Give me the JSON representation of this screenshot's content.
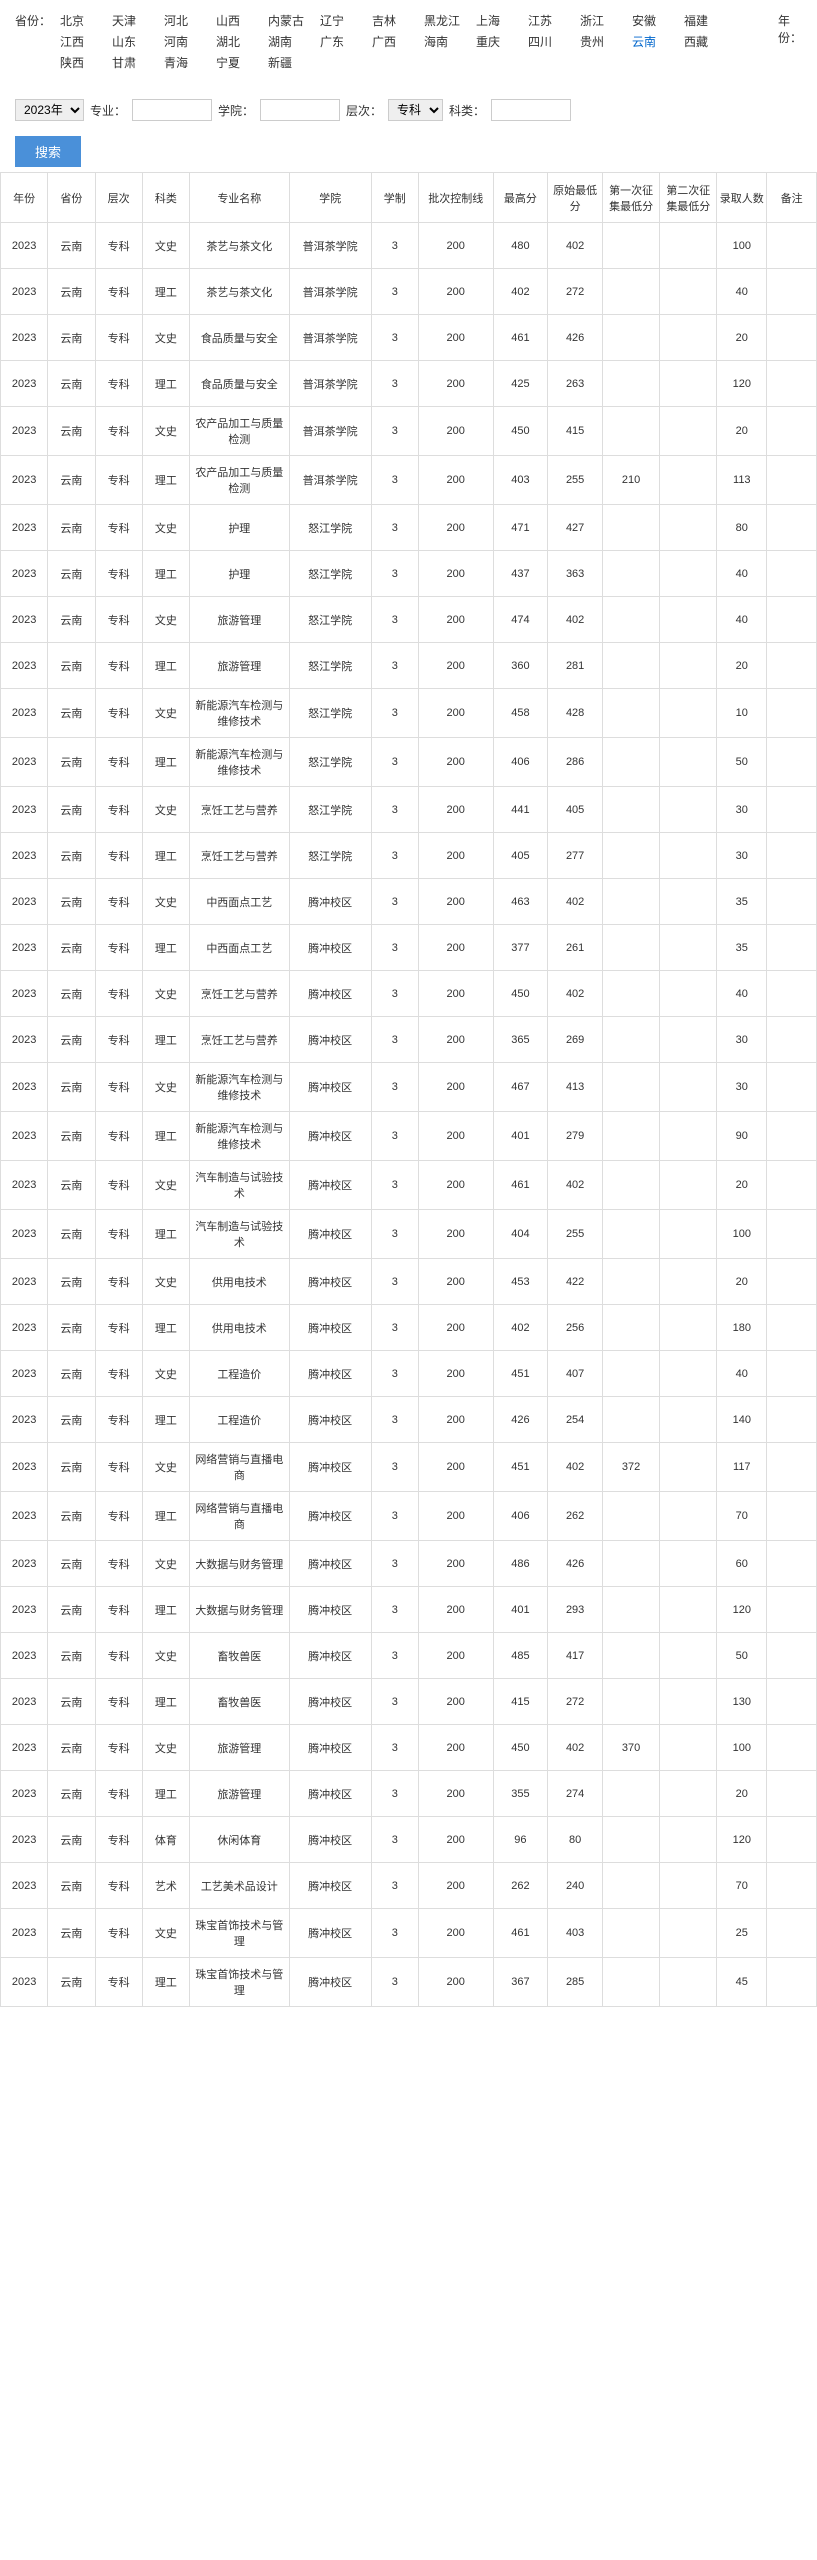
{
  "filter": {
    "province_label": "省份：",
    "year_label": "年份：",
    "provinces": [
      "北京",
      "天津",
      "河北",
      "山西",
      "内蒙古",
      "辽宁",
      "吉林",
      "黑龙江",
      "上海",
      "江苏",
      "浙江",
      "安徽",
      "福建",
      "江西",
      "山东",
      "河南",
      "湖北",
      "湖南",
      "广东",
      "广西",
      "海南",
      "重庆",
      "四川",
      "贵州",
      "云南",
      "西藏",
      "陕西",
      "甘肃",
      "青海",
      "宁夏",
      "新疆"
    ],
    "active_province": "云南"
  },
  "query": {
    "year_options": [
      "2023年"
    ],
    "year_selected": "2023年",
    "major_label": "专业：",
    "college_label": "学院：",
    "level_label": "层次：",
    "level_options": [
      "专科"
    ],
    "level_selected": "专科",
    "category_label": "科类：",
    "search_btn": "搜索"
  },
  "table": {
    "headers": [
      "年份",
      "省份",
      "层次",
      "科类",
      "专业名称",
      "学院",
      "学制",
      "批次控制线",
      "最高分",
      "原始最低分",
      "第一次征集最低分",
      "第二次征集最低分",
      "录取人数",
      "备注"
    ],
    "rows": [
      [
        "2023",
        "云南",
        "专科",
        "文史",
        "茶艺与茶文化",
        "普洱茶学院",
        "3",
        "200",
        "480",
        "402",
        "",
        "",
        "100",
        ""
      ],
      [
        "2023",
        "云南",
        "专科",
        "理工",
        "茶艺与茶文化",
        "普洱茶学院",
        "3",
        "200",
        "402",
        "272",
        "",
        "",
        "40",
        ""
      ],
      [
        "2023",
        "云南",
        "专科",
        "文史",
        "食品质量与安全",
        "普洱茶学院",
        "3",
        "200",
        "461",
        "426",
        "",
        "",
        "20",
        ""
      ],
      [
        "2023",
        "云南",
        "专科",
        "理工",
        "食品质量与安全",
        "普洱茶学院",
        "3",
        "200",
        "425",
        "263",
        "",
        "",
        "120",
        ""
      ],
      [
        "2023",
        "云南",
        "专科",
        "文史",
        "农产品加工与质量检测",
        "普洱茶学院",
        "3",
        "200",
        "450",
        "415",
        "",
        "",
        "20",
        ""
      ],
      [
        "2023",
        "云南",
        "专科",
        "理工",
        "农产品加工与质量检测",
        "普洱茶学院",
        "3",
        "200",
        "403",
        "255",
        "210",
        "",
        "113",
        ""
      ],
      [
        "2023",
        "云南",
        "专科",
        "文史",
        "护理",
        "怒江学院",
        "3",
        "200",
        "471",
        "427",
        "",
        "",
        "80",
        ""
      ],
      [
        "2023",
        "云南",
        "专科",
        "理工",
        "护理",
        "怒江学院",
        "3",
        "200",
        "437",
        "363",
        "",
        "",
        "40",
        ""
      ],
      [
        "2023",
        "云南",
        "专科",
        "文史",
        "旅游管理",
        "怒江学院",
        "3",
        "200",
        "474",
        "402",
        "",
        "",
        "40",
        ""
      ],
      [
        "2023",
        "云南",
        "专科",
        "理工",
        "旅游管理",
        "怒江学院",
        "3",
        "200",
        "360",
        "281",
        "",
        "",
        "20",
        ""
      ],
      [
        "2023",
        "云南",
        "专科",
        "文史",
        "新能源汽车检测与维修技术",
        "怒江学院",
        "3",
        "200",
        "458",
        "428",
        "",
        "",
        "10",
        ""
      ],
      [
        "2023",
        "云南",
        "专科",
        "理工",
        "新能源汽车检测与维修技术",
        "怒江学院",
        "3",
        "200",
        "406",
        "286",
        "",
        "",
        "50",
        ""
      ],
      [
        "2023",
        "云南",
        "专科",
        "文史",
        "烹饪工艺与营养",
        "怒江学院",
        "3",
        "200",
        "441",
        "405",
        "",
        "",
        "30",
        ""
      ],
      [
        "2023",
        "云南",
        "专科",
        "理工",
        "烹饪工艺与营养",
        "怒江学院",
        "3",
        "200",
        "405",
        "277",
        "",
        "",
        "30",
        ""
      ],
      [
        "2023",
        "云南",
        "专科",
        "文史",
        "中西面点工艺",
        "腾冲校区",
        "3",
        "200",
        "463",
        "402",
        "",
        "",
        "35",
        ""
      ],
      [
        "2023",
        "云南",
        "专科",
        "理工",
        "中西面点工艺",
        "腾冲校区",
        "3",
        "200",
        "377",
        "261",
        "",
        "",
        "35",
        ""
      ],
      [
        "2023",
        "云南",
        "专科",
        "文史",
        "烹饪工艺与营养",
        "腾冲校区",
        "3",
        "200",
        "450",
        "402",
        "",
        "",
        "40",
        ""
      ],
      [
        "2023",
        "云南",
        "专科",
        "理工",
        "烹饪工艺与营养",
        "腾冲校区",
        "3",
        "200",
        "365",
        "269",
        "",
        "",
        "30",
        ""
      ],
      [
        "2023",
        "云南",
        "专科",
        "文史",
        "新能源汽车检测与维修技术",
        "腾冲校区",
        "3",
        "200",
        "467",
        "413",
        "",
        "",
        "30",
        ""
      ],
      [
        "2023",
        "云南",
        "专科",
        "理工",
        "新能源汽车检测与维修技术",
        "腾冲校区",
        "3",
        "200",
        "401",
        "279",
        "",
        "",
        "90",
        ""
      ],
      [
        "2023",
        "云南",
        "专科",
        "文史",
        "汽车制造与试验技术",
        "腾冲校区",
        "3",
        "200",
        "461",
        "402",
        "",
        "",
        "20",
        ""
      ],
      [
        "2023",
        "云南",
        "专科",
        "理工",
        "汽车制造与试验技术",
        "腾冲校区",
        "3",
        "200",
        "404",
        "255",
        "",
        "",
        "100",
        ""
      ],
      [
        "2023",
        "云南",
        "专科",
        "文史",
        "供用电技术",
        "腾冲校区",
        "3",
        "200",
        "453",
        "422",
        "",
        "",
        "20",
        ""
      ],
      [
        "2023",
        "云南",
        "专科",
        "理工",
        "供用电技术",
        "腾冲校区",
        "3",
        "200",
        "402",
        "256",
        "",
        "",
        "180",
        ""
      ],
      [
        "2023",
        "云南",
        "专科",
        "文史",
        "工程造价",
        "腾冲校区",
        "3",
        "200",
        "451",
        "407",
        "",
        "",
        "40",
        ""
      ],
      [
        "2023",
        "云南",
        "专科",
        "理工",
        "工程造价",
        "腾冲校区",
        "3",
        "200",
        "426",
        "254",
        "",
        "",
        "140",
        ""
      ],
      [
        "2023",
        "云南",
        "专科",
        "文史",
        "网络营销与直播电商",
        "腾冲校区",
        "3",
        "200",
        "451",
        "402",
        "372",
        "",
        "117",
        ""
      ],
      [
        "2023",
        "云南",
        "专科",
        "理工",
        "网络营销与直播电商",
        "腾冲校区",
        "3",
        "200",
        "406",
        "262",
        "",
        "",
        "70",
        ""
      ],
      [
        "2023",
        "云南",
        "专科",
        "文史",
        "大数据与财务管理",
        "腾冲校区",
        "3",
        "200",
        "486",
        "426",
        "",
        "",
        "60",
        ""
      ],
      [
        "2023",
        "云南",
        "专科",
        "理工",
        "大数据与财务管理",
        "腾冲校区",
        "3",
        "200",
        "401",
        "293",
        "",
        "",
        "120",
        ""
      ],
      [
        "2023",
        "云南",
        "专科",
        "文史",
        "畜牧兽医",
        "腾冲校区",
        "3",
        "200",
        "485",
        "417",
        "",
        "",
        "50",
        ""
      ],
      [
        "2023",
        "云南",
        "专科",
        "理工",
        "畜牧兽医",
        "腾冲校区",
        "3",
        "200",
        "415",
        "272",
        "",
        "",
        "130",
        ""
      ],
      [
        "2023",
        "云南",
        "专科",
        "文史",
        "旅游管理",
        "腾冲校区",
        "3",
        "200",
        "450",
        "402",
        "370",
        "",
        "100",
        ""
      ],
      [
        "2023",
        "云南",
        "专科",
        "理工",
        "旅游管理",
        "腾冲校区",
        "3",
        "200",
        "355",
        "274",
        "",
        "",
        "20",
        ""
      ],
      [
        "2023",
        "云南",
        "专科",
        "体育",
        "休闲体育",
        "腾冲校区",
        "3",
        "200",
        "96",
        "80",
        "",
        "",
        "120",
        ""
      ],
      [
        "2023",
        "云南",
        "专科",
        "艺术",
        "工艺美术品设计",
        "腾冲校区",
        "3",
        "200",
        "262",
        "240",
        "",
        "",
        "70",
        ""
      ],
      [
        "2023",
        "云南",
        "专科",
        "文史",
        "珠宝首饰技术与管理",
        "腾冲校区",
        "3",
        "200",
        "461",
        "403",
        "",
        "",
        "25",
        ""
      ],
      [
        "2023",
        "云南",
        "专科",
        "理工",
        "珠宝首饰技术与管理",
        "腾冲校区",
        "3",
        "200",
        "367",
        "285",
        "",
        "",
        "45",
        ""
      ]
    ]
  }
}
